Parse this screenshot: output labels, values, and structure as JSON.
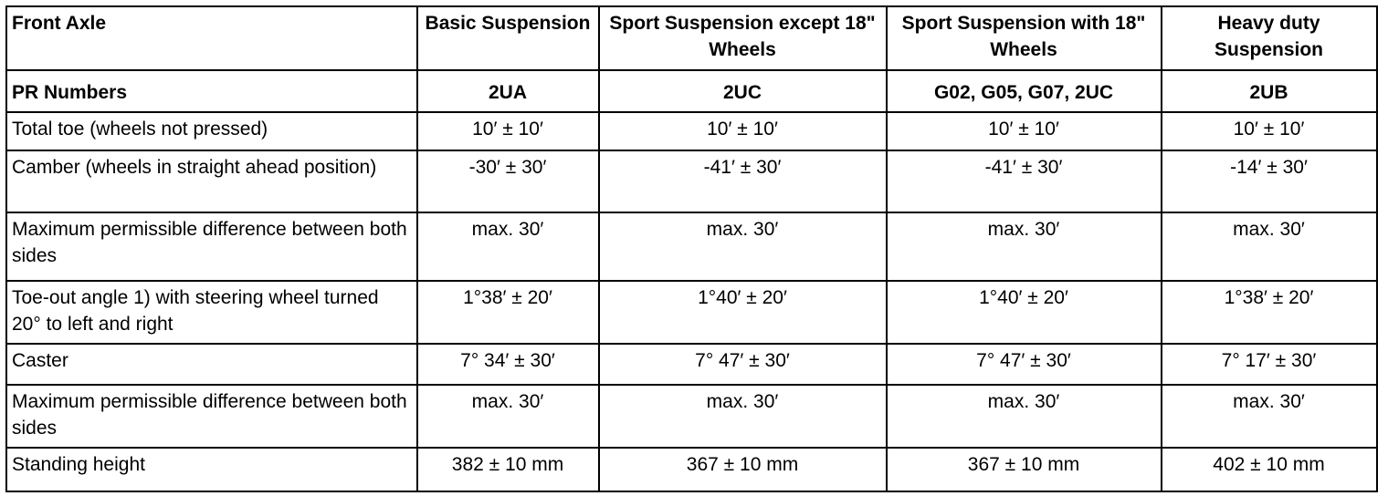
{
  "table": {
    "header": [
      "Front Axle",
      "Basic Suspension",
      "Sport Suspension except 18\" Wheels",
      "Sport Suspension with 18\" Wheels",
      "Heavy duty Suspension"
    ],
    "rows": [
      [
        "PR Numbers",
        "2UA",
        "2UC",
        "G02, G05, G07, 2UC",
        "2UB"
      ],
      [
        "Total toe (wheels not pressed)",
        "10′ ± 10′",
        "10′ ± 10′",
        "10′ ± 10′",
        "10′ ± 10′"
      ],
      [
        "Camber (wheels in straight ahead position)",
        "-30′ ± 30′",
        "-41′ ± 30′",
        "-41′ ± 30′",
        "-14′ ± 30′"
      ],
      [
        "Maximum permissible difference between both sides",
        "max. 30′",
        "max. 30′",
        "max. 30′",
        "max. 30′"
      ],
      [
        "Toe-out angle 1) with steering wheel turned 20° to left and right",
        "1°38′ ± 20′",
        "1°40′ ± 20′",
        "1°40′ ± 20′",
        "1°38′ ± 20′"
      ],
      [
        "Caster",
        "7° 34′ ± 30′",
        "7° 47′ ± 30′",
        "7° 47′ ± 30′",
        "7° 17′ ± 30′"
      ],
      [
        "Maximum permissible difference between both sides",
        "max. 30′",
        "max. 30′",
        "max. 30′",
        "max. 30′"
      ],
      [
        "Standing height",
        "382 ± 10 mm",
        "367 ± 10 mm",
        "367 ± 10 mm",
        "402 ± 10 mm"
      ]
    ]
  }
}
